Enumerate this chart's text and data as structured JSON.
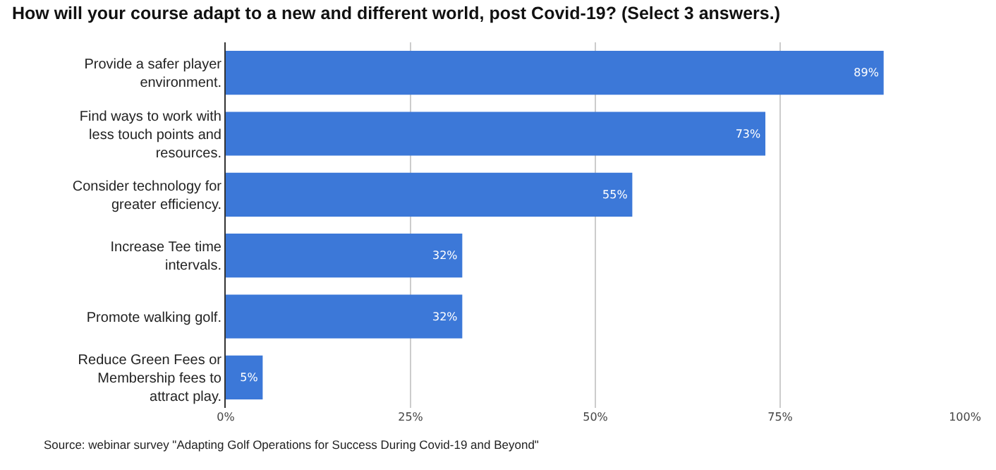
{
  "chart_data": {
    "type": "bar",
    "orientation": "horizontal",
    "title": "How will your course adapt to a new and different world, post Covid-19? (Select 3 answers.)",
    "categories": [
      "Provide a safer player environment.",
      "Find ways to work with less touch points and resources.",
      "Consider technology for greater efficiency.",
      "Increase Tee time intervals.",
      "Promote walking golf.",
      "Reduce Green Fees or Membership fees to attract play."
    ],
    "values": [
      89,
      73,
      55,
      32,
      32,
      5
    ],
    "value_labels": [
      "89%",
      "73%",
      "55%",
      "32%",
      "32%",
      "5%"
    ],
    "color": "#3c78d8",
    "xlim": [
      0,
      100
    ],
    "xticks": [
      {
        "value": 0,
        "label": "0%"
      },
      {
        "value": 25,
        "label": "25%"
      },
      {
        "value": 50,
        "label": "50%"
      },
      {
        "value": 75,
        "label": "75%"
      },
      {
        "value": 100,
        "label": "100%"
      }
    ],
    "grid": "x",
    "annotations": [
      "Source: webinar survey \"Adapting Golf Operations for Success During Covid-19 and Beyond\""
    ]
  }
}
